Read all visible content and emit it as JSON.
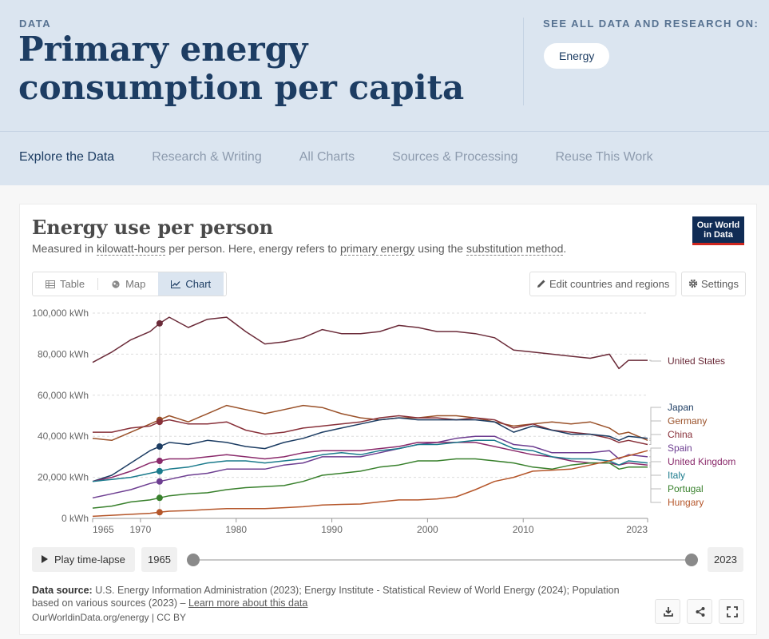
{
  "header": {
    "kicker": "DATA",
    "title": "Primary energy consumption per capita",
    "see_all": "SEE ALL DATA AND RESEARCH ON:",
    "topic": "Energy"
  },
  "nav": [
    "Explore the Data",
    "Research & Writing",
    "All Charts",
    "Sources & Processing",
    "Reuse This Work"
  ],
  "chart_header": {
    "title": "Energy use per person",
    "subtitle_1": "Measured in ",
    "subtitle_link_1": "kilowatt-hours",
    "subtitle_2": " per person. Here, energy refers to ",
    "subtitle_link_2": "primary energy",
    "subtitle_3": " using the ",
    "subtitle_link_3": "substitution method",
    "subtitle_4": ".",
    "logo_line1": "Our World",
    "logo_line2": "in Data"
  },
  "tabs": {
    "table": "Table",
    "map": "Map",
    "chart": "Chart"
  },
  "controls": {
    "edit": "Edit countries and regions",
    "settings": "Settings"
  },
  "timeline": {
    "play": "Play time-lapse",
    "start": "1965",
    "end": "2023"
  },
  "footer": {
    "source_label": "Data source:",
    "source_text": " U.S. Energy Information Administration (2023); Energy Institute - Statistical Review of World Energy (2024); Population based on various sources (2023) – ",
    "learn_more": "Learn more about this data",
    "credit": "OurWorldinData.org/energy | CC BY"
  },
  "colors": {
    "United States": "#6b2b39",
    "Japan": "#1d3d63",
    "Germany": "#9a5129",
    "China": "#883039",
    "Spain": "#6d3e91",
    "United Kingdom": "#8a2a6b",
    "Italy": "#1a7a8c",
    "Portugal": "#38802c",
    "Hungary": "#b5562a"
  },
  "chart_data": {
    "type": "line",
    "title": "Energy use per person",
    "ylabel": "kWh",
    "ylim": [
      0,
      100000
    ],
    "yticks": [
      "0 kWh",
      "20,000 kWh",
      "40,000 kWh",
      "60,000 kWh",
      "80,000 kWh",
      "100,000 kWh"
    ],
    "xticks": [
      "1965",
      "1970",
      "1980",
      "1990",
      "2000",
      "2010",
      "2023"
    ],
    "xticks_values": [
      1965,
      1970,
      1980,
      1990,
      2000,
      2010,
      2023
    ],
    "xlim": [
      1965,
      2023
    ],
    "hover_year": 1972,
    "x": [
      1965,
      1967,
      1969,
      1971,
      1972,
      1973,
      1975,
      1977,
      1979,
      1981,
      1983,
      1985,
      1987,
      1989,
      1991,
      1993,
      1995,
      1997,
      1999,
      2001,
      2003,
      2005,
      2007,
      2009,
      2011,
      2013,
      2015,
      2017,
      2019,
      2020,
      2021,
      2023
    ],
    "series": [
      {
        "name": "United States",
        "values": [
          76000,
          81000,
          87000,
          91000,
          95000,
          98000,
          93000,
          97000,
          98000,
          91000,
          85000,
          86000,
          88000,
          92000,
          90000,
          90000,
          91000,
          94000,
          93000,
          91000,
          91000,
          90000,
          88000,
          82000,
          81000,
          80000,
          79000,
          78000,
          80000,
          73000,
          77000,
          77000
        ]
      },
      {
        "name": "Germany",
        "values": [
          39000,
          38000,
          42000,
          46000,
          48000,
          50000,
          47000,
          51000,
          55000,
          53000,
          51000,
          53000,
          55000,
          54000,
          51000,
          49000,
          48000,
          49000,
          49000,
          50000,
          50000,
          49000,
          47000,
          45000,
          46000,
          47000,
          46000,
          47000,
          44000,
          41000,
          42000,
          38000
        ]
      },
      {
        "name": "China",
        "values": [
          42000,
          42000,
          44000,
          45000,
          47000,
          48000,
          46000,
          46000,
          47000,
          43000,
          41000,
          42000,
          44000,
          45000,
          46000,
          47000,
          49000,
          50000,
          49000,
          49000,
          48000,
          49000,
          48000,
          44000,
          46000,
          43000,
          42000,
          41000,
          39000,
          37000,
          38000,
          36000
        ]
      },
      {
        "name": "Japan",
        "values": [
          18000,
          21000,
          27000,
          33000,
          35000,
          37000,
          36000,
          38000,
          37000,
          35000,
          34000,
          37000,
          39000,
          42000,
          44000,
          46000,
          48000,
          49000,
          48000,
          48000,
          48000,
          48000,
          47000,
          42000,
          45000,
          43000,
          41000,
          41000,
          40000,
          38000,
          40000,
          39000
        ]
      },
      {
        "name": "Spain",
        "values": [
          10000,
          12000,
          14000,
          17000,
          18000,
          19000,
          21000,
          22000,
          24000,
          24000,
          24000,
          26000,
          27000,
          30000,
          30000,
          30000,
          32000,
          34000,
          36000,
          37000,
          39000,
          40000,
          40000,
          36000,
          35000,
          32000,
          32000,
          32000,
          33000,
          29000,
          31000,
          30000
        ]
      },
      {
        "name": "United Kingdom",
        "values": [
          18000,
          20000,
          23000,
          27000,
          28000,
          29000,
          29000,
          30000,
          31000,
          30000,
          29000,
          30000,
          32000,
          33000,
          33000,
          33000,
          34000,
          35000,
          37000,
          37000,
          37000,
          37000,
          35000,
          33000,
          31000,
          30000,
          28000,
          27000,
          27000,
          26000,
          27000,
          26000
        ]
      },
      {
        "name": "Italy",
        "values": [
          18000,
          19000,
          20000,
          22000,
          23000,
          24000,
          25000,
          27000,
          28000,
          28000,
          27000,
          28000,
          29000,
          31000,
          32000,
          31000,
          33000,
          34000,
          36000,
          36000,
          37000,
          38000,
          38000,
          34000,
          33000,
          30000,
          29000,
          29000,
          28000,
          26000,
          28000,
          27000
        ]
      },
      {
        "name": "Portugal",
        "values": [
          5000,
          6000,
          8000,
          9000,
          10000,
          11000,
          12000,
          12500,
          14000,
          15000,
          15500,
          16000,
          18000,
          21000,
          22000,
          23000,
          25000,
          26000,
          28000,
          28000,
          29000,
          29000,
          28000,
          27000,
          25000,
          24000,
          26000,
          27000,
          27000,
          24000,
          25000,
          25000
        ]
      },
      {
        "name": "Hungary",
        "values": [
          1000,
          1500,
          2000,
          2500,
          3000,
          3500,
          3800,
          4300,
          4800,
          4800,
          4800,
          5200,
          5700,
          6500,
          6800,
          7000,
          8000,
          9000,
          9000,
          9500,
          10500,
          14000,
          18000,
          20000,
          23000,
          23500,
          24000,
          26000,
          28000,
          29500,
          30500,
          33000
        ]
      }
    ],
    "labels_order": [
      "United States",
      "Japan",
      "Germany",
      "China",
      "Spain",
      "United Kingdom",
      "Italy",
      "Portugal",
      "Hungary"
    ]
  }
}
